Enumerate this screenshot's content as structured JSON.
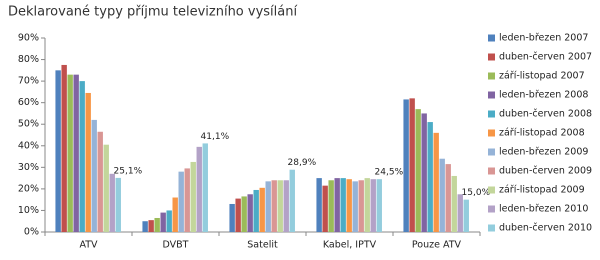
{
  "chart_data": {
    "type": "bar",
    "title": "Deklarované typy příjmu televizního vysílání",
    "categories": [
      "ATV",
      "DVBT",
      "Satelit",
      "Kabel, IPTV",
      "Pouze ATV"
    ],
    "series": [
      {
        "name": "leden-březen 2007",
        "color": "#4f81bd",
        "values": [
          75,
          5,
          13,
          25,
          61.5
        ]
      },
      {
        "name": "duben-červen 2007",
        "color": "#c0504d",
        "values": [
          77.5,
          5.5,
          15.5,
          21.5,
          62
        ]
      },
      {
        "name": "září-listopad 2007",
        "color": "#9bbb59",
        "values": [
          73,
          6.5,
          16.5,
          24,
          57
        ]
      },
      {
        "name": "leden-březen 2008",
        "color": "#8064a2",
        "values": [
          73,
          9,
          17.5,
          25,
          55
        ]
      },
      {
        "name": "duben-červen 2008",
        "color": "#4bacc6",
        "values": [
          70,
          10,
          19.5,
          25,
          51
        ]
      },
      {
        "name": "září-listopad 2008",
        "color": "#f79646",
        "values": [
          64.5,
          16,
          20.5,
          24.5,
          46
        ]
      },
      {
        "name": "leden-březen 2009",
        "color": "#95b3d7",
        "values": [
          52,
          28,
          23.5,
          23.5,
          34
        ]
      },
      {
        "name": "duben-červen 2009",
        "color": "#d99694",
        "values": [
          46.5,
          29.5,
          24,
          24,
          31.5
        ]
      },
      {
        "name": "září-listopad 2009",
        "color": "#c3d69b",
        "values": [
          40.5,
          32.5,
          24,
          25,
          26
        ]
      },
      {
        "name": "leden-březen 2010",
        "color": "#b3a2c7",
        "values": [
          27,
          39.5,
          24,
          24.5,
          17.5
        ]
      },
      {
        "name": "duben-červen 2010",
        "color": "#93cddd",
        "values": [
          25.1,
          41.1,
          28.9,
          24.5,
          15.0
        ],
        "value_labels": [
          "25,1%",
          "41,1%",
          "28,9%",
          "24,5%",
          "15,0%"
        ]
      }
    ],
    "ylim": [
      0,
      90
    ],
    "yticks": [
      {
        "value": 0,
        "label": "0%"
      },
      {
        "value": 10,
        "label": "10%"
      },
      {
        "value": 20,
        "label": "20%"
      },
      {
        "value": 30,
        "label": "30%"
      },
      {
        "value": 40,
        "label": "40%"
      },
      {
        "value": 50,
        "label": "50%"
      },
      {
        "value": 60,
        "label": "60%"
      },
      {
        "value": 70,
        "label": "70%"
      },
      {
        "value": 80,
        "label": "80%"
      },
      {
        "value": 90,
        "label": "90%"
      }
    ],
    "grid": false,
    "legend": "right"
  }
}
